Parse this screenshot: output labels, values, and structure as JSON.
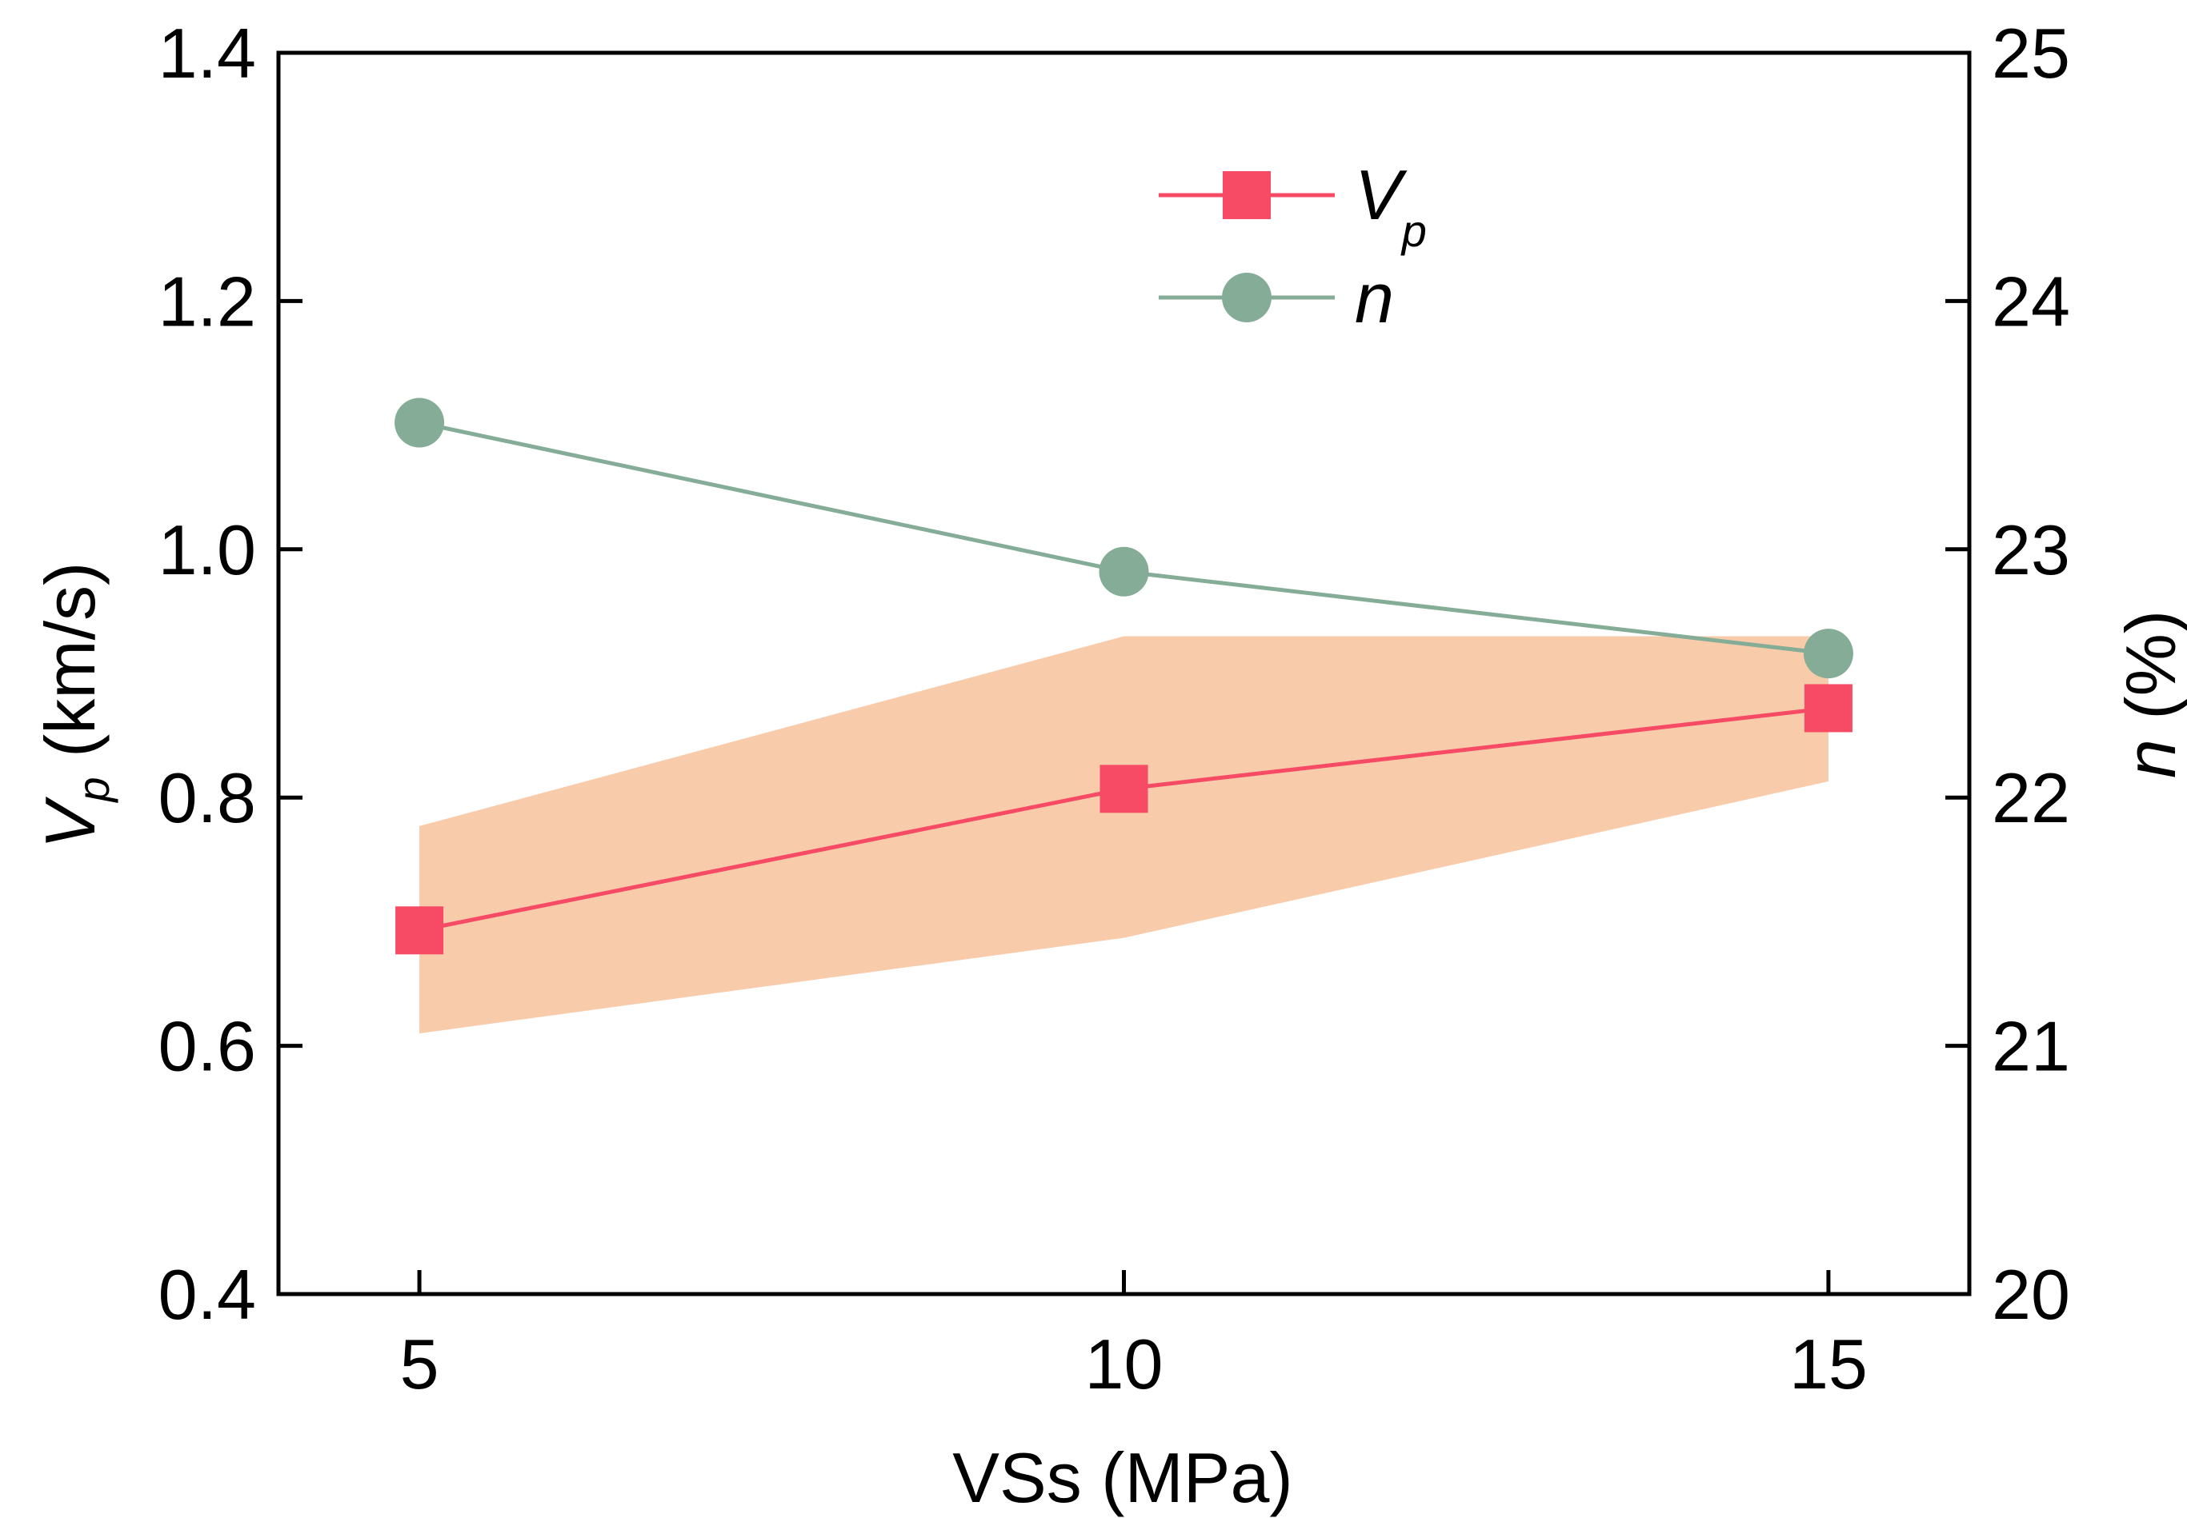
{
  "chart_data": {
    "type": "line",
    "title": "",
    "x": [
      5,
      10,
      15
    ],
    "xlim": [
      4,
      16
    ],
    "xticks": [
      5,
      10,
      15
    ],
    "xlabel": "VSs (MPa)",
    "y_left": {
      "label_var": "V",
      "label_sub": "p",
      "label_unit": " (km/s)",
      "lim": [
        0.4,
        1.4
      ],
      "ticks": [
        "0.4",
        "0.6",
        "0.8",
        "1.0",
        "1.2",
        "1.4"
      ]
    },
    "y_right": {
      "label_var": "n",
      "label_unit": " (%)",
      "lim": [
        20,
        25
      ],
      "ticks": [
        "20",
        "21",
        "22",
        "23",
        "24",
        "25"
      ]
    },
    "series": [
      {
        "name": "Vp",
        "legend_var": "V",
        "legend_sub": "p",
        "axis": "left",
        "values": [
          0.693,
          0.807,
          0.872
        ],
        "band_upper": [
          0.777,
          0.93,
          0.93
        ],
        "band_lower": [
          0.61,
          0.687,
          0.813
        ],
        "color": "#f74a64",
        "band_color": "#f8cbab",
        "marker": "square"
      },
      {
        "name": "n",
        "legend_var": "n",
        "axis": "right",
        "values": [
          23.51,
          22.91,
          22.58
        ],
        "color": "#84ac96",
        "marker": "circle"
      }
    ],
    "legend_position": "top-center"
  }
}
